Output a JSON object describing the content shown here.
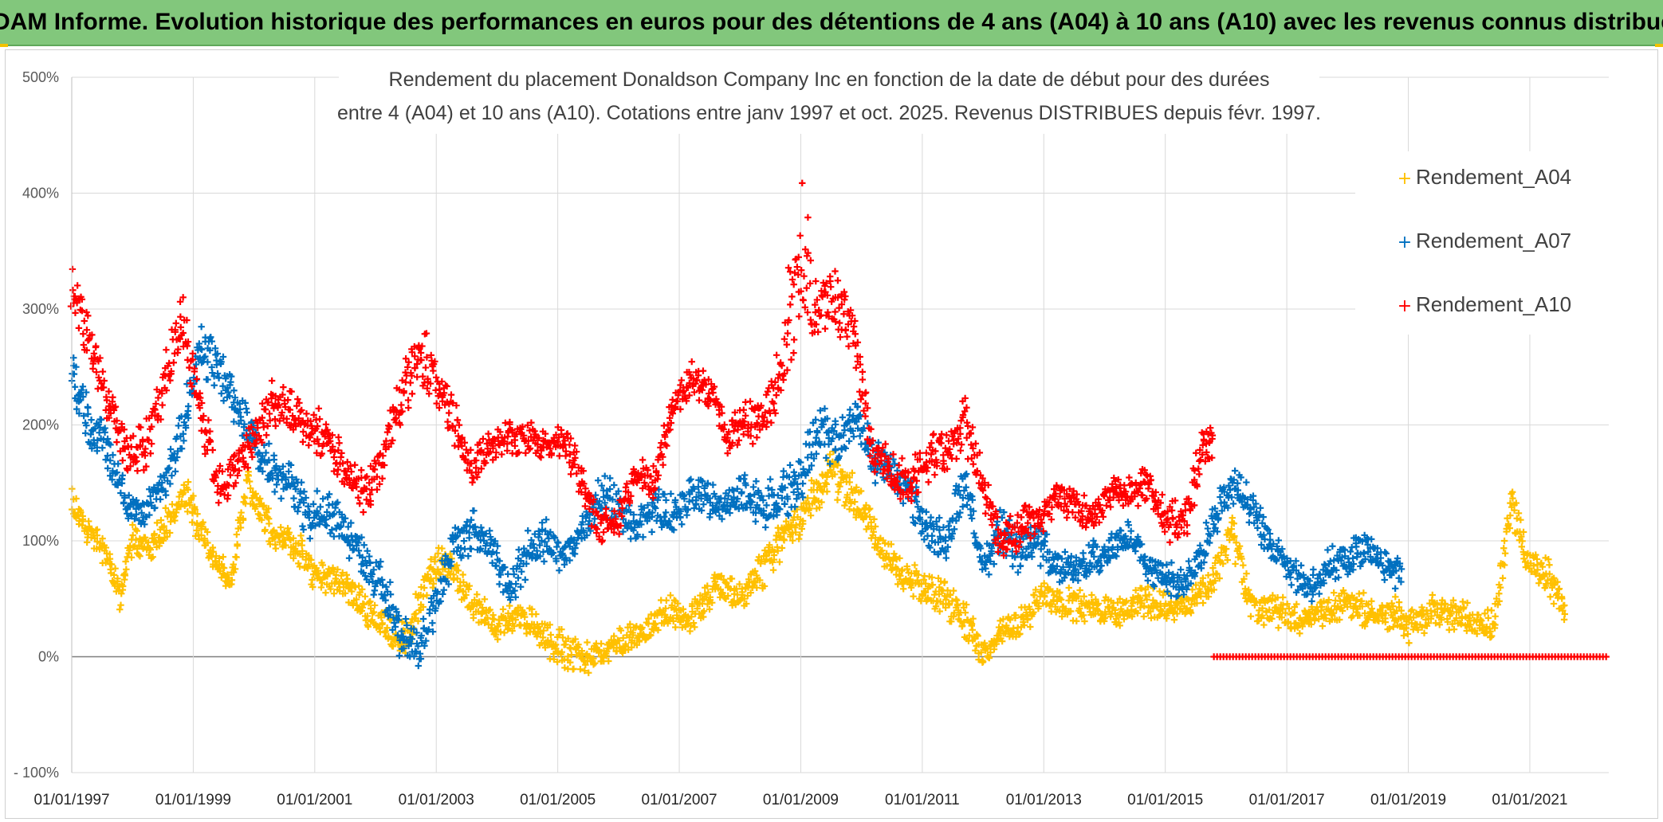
{
  "banner": {
    "title": "ADAM Informe. Evolution historique des performances en euros pour des détentions de 4 ans (A04) à 10 ans (A10) avec les revenus connus distribués"
  },
  "colors": {
    "banner_bg": "#82c77c",
    "A04": "#ffc000",
    "A07": "#0070c0",
    "A10": "#ff0000",
    "grid": "#d9d9d9"
  },
  "chart_data": {
    "type": "scatter",
    "title_line1": "Rendement du placement Donaldson Company Inc en fonction de la date de début pour des durées",
    "title_line2": "entre 4 (A04) et 10 ans (A10). Cotations entre janv 1997 et oct. 2025. Revenus DISTRIBUES depuis févr. 1997.",
    "xlabel": "",
    "ylabel": "",
    "x_range": [
      1997.0,
      2022.3
    ],
    "ylim": [
      -100,
      500
    ],
    "y_ticks": [
      {
        "value": 500,
        "label": "500%"
      },
      {
        "value": 400,
        "label": "400%"
      },
      {
        "value": 300,
        "label": "300%"
      },
      {
        "value": 200,
        "label": "200%"
      },
      {
        "value": 100,
        "label": "100%"
      },
      {
        "value": 0,
        "label": "0%"
      },
      {
        "value": -100,
        "label": "- 100%"
      }
    ],
    "x_ticks": [
      {
        "value": 1997,
        "label": "01/01/1997"
      },
      {
        "value": 1999,
        "label": "01/01/1999"
      },
      {
        "value": 2001,
        "label": "01/01/2001"
      },
      {
        "value": 2003,
        "label": "01/01/2003"
      },
      {
        "value": 2005,
        "label": "01/01/2005"
      },
      {
        "value": 2007,
        "label": "01/01/2007"
      },
      {
        "value": 2009,
        "label": "01/01/2009"
      },
      {
        "value": 2011,
        "label": "01/01/2011"
      },
      {
        "value": 2013,
        "label": "01/01/2013"
      },
      {
        "value": 2015,
        "label": "01/01/2015"
      },
      {
        "value": 2017,
        "label": "01/01/2017"
      },
      {
        "value": 2019,
        "label": "01/01/2019"
      },
      {
        "value": 2021,
        "label": "01/01/2021"
      }
    ],
    "grid": true,
    "legend_position": "top-right",
    "marker": "+",
    "series": [
      {
        "name": "Rendement_A04",
        "color": "#ffc000",
        "x": [
          1997.0,
          1997.3,
          1997.6,
          1997.8,
          1998.0,
          1998.3,
          1998.6,
          1998.9,
          1999.1,
          1999.4,
          1999.6,
          1999.9,
          2000.3,
          2000.7,
          2001.0,
          2001.4,
          2001.8,
          2002.1,
          2002.5,
          2002.8,
          2003.0,
          2003.3,
          2003.6,
          2004.0,
          2004.4,
          2004.8,
          2005.2,
          2005.6,
          2006.0,
          2006.4,
          2006.8,
          2007.2,
          2007.6,
          2008.0,
          2008.4,
          2008.8,
          2009.1,
          2009.5,
          2009.9,
          2010.3,
          2010.7,
          2011.0,
          2011.4,
          2011.8,
          2012.0,
          2012.3,
          2012.7,
          2013.0,
          2013.4,
          2013.8,
          2014.2,
          2014.6,
          2015.0,
          2015.4,
          2015.8,
          2016.1,
          2016.4,
          2016.8,
          2017.2,
          2017.6,
          2018.0,
          2018.4,
          2018.8,
          2019.0,
          2019.4,
          2019.8,
          2020.1,
          2020.4,
          2020.7,
          2021.0,
          2021.3,
          2021.6
        ],
        "y": [
          130,
          105,
          85,
          50,
          100,
          90,
          120,
          140,
          110,
          80,
          60,
          150,
          110,
          95,
          70,
          65,
          45,
          30,
          15,
          60,
          80,
          75,
          45,
          25,
          35,
          15,
          5,
          0,
          10,
          20,
          40,
          30,
          60,
          50,
          80,
          110,
          125,
          160,
          140,
          95,
          70,
          60,
          50,
          25,
          0,
          20,
          30,
          55,
          45,
          40,
          35,
          50,
          40,
          45,
          70,
          110,
          45,
          40,
          30,
          35,
          50,
          35,
          40,
          25,
          40,
          35,
          30,
          25,
          130,
          75,
          70,
          40
        ],
        "y_low": [
          120,
          95,
          75,
          40,
          90,
          80,
          105,
          125,
          95,
          70,
          50,
          135,
          95,
          80,
          55,
          50,
          30,
          15,
          0,
          45,
          65,
          60,
          30,
          15,
          25,
          0,
          -15,
          -15,
          0,
          10,
          25,
          20,
          45,
          40,
          60,
          90,
          110,
          140,
          120,
          80,
          55,
          45,
          30,
          10,
          -10,
          10,
          15,
          40,
          30,
          30,
          25,
          35,
          30,
          35,
          55,
          90,
          30,
          25,
          20,
          25,
          35,
          20,
          25,
          10,
          25,
          20,
          20,
          15,
          110,
          60,
          55,
          20
        ],
        "y_high": [
          145,
          120,
          100,
          65,
          115,
          105,
          135,
          155,
          125,
          95,
          75,
          165,
          125,
          110,
          85,
          80,
          60,
          45,
          30,
          75,
          95,
          90,
          60,
          40,
          50,
          30,
          20,
          15,
          25,
          35,
          55,
          45,
          75,
          65,
          95,
          125,
          145,
          180,
          160,
          110,
          85,
          75,
          65,
          40,
          15,
          35,
          45,
          70,
          60,
          55,
          50,
          65,
          55,
          60,
          85,
          125,
          60,
          55,
          45,
          50,
          65,
          50,
          55,
          40,
          55,
          50,
          45,
          40,
          150,
          90,
          85,
          50
        ]
      },
      {
        "name": "Rendement_A07",
        "color": "#0070c0",
        "x": [
          1997.0,
          1997.3,
          1997.6,
          1997.9,
          1998.2,
          1998.5,
          1998.8,
          1999.1,
          1999.4,
          1999.7,
          2000.0,
          2000.3,
          2000.6,
          2000.9,
          2001.2,
          2001.5,
          2001.8,
          2002.1,
          2002.4,
          2002.7,
          2003.0,
          2003.3,
          2003.6,
          2003.9,
          2004.2,
          2004.5,
          2004.8,
          2005.1,
          2005.4,
          2005.7,
          2006.0,
          2006.3,
          2006.6,
          2006.9,
          2007.2,
          2007.5,
          2007.8,
          2008.1,
          2008.4,
          2008.7,
          2009.0,
          2009.3,
          2009.6,
          2009.9,
          2010.2,
          2010.5,
          2010.8,
          2011.1,
          2011.4,
          2011.7,
          2012.0,
          2012.3,
          2012.6,
          2012.9,
          2013.2,
          2013.5,
          2013.8,
          2014.1,
          2014.4,
          2014.7,
          2015.0,
          2015.3,
          2015.6,
          2015.9,
          2016.2,
          2016.5,
          2016.8,
          2017.1,
          2017.4,
          2017.7,
          2018.0,
          2018.3,
          2018.6,
          2018.9
        ],
        "y": [
          240,
          200,
          180,
          130,
          125,
          145,
          190,
          270,
          250,
          220,
          190,
          160,
          150,
          120,
          130,
          110,
          80,
          65,
          20,
          5,
          50,
          95,
          110,
          90,
          55,
          90,
          100,
          85,
          110,
          140,
          130,
          110,
          130,
          120,
          140,
          135,
          130,
          140,
          130,
          140,
          150,
          200,
          180,
          210,
          170,
          160,
          140,
          110,
          100,
          150,
          75,
          110,
          90,
          100,
          80,
          75,
          85,
          90,
          105,
          80,
          70,
          60,
          90,
          130,
          150,
          120,
          90,
          70,
          60,
          80,
          85,
          95,
          80,
          70
        ],
        "y_low": [
          215,
          180,
          160,
          115,
          110,
          130,
          170,
          245,
          225,
          200,
          170,
          140,
          130,
          100,
          110,
          90,
          60,
          45,
          0,
          -10,
          30,
          75,
          90,
          70,
          40,
          70,
          80,
          70,
          95,
          120,
          110,
          95,
          110,
          100,
          125,
          120,
          115,
          120,
          110,
          120,
          125,
          175,
          160,
          190,
          150,
          140,
          120,
          95,
          80,
          130,
          60,
          90,
          70,
          80,
          65,
          60,
          70,
          75,
          90,
          65,
          55,
          45,
          75,
          110,
          130,
          105,
          75,
          55,
          45,
          65,
          70,
          80,
          65,
          50
        ],
        "y_high": [
          265,
          220,
          200,
          145,
          140,
          160,
          210,
          295,
          275,
          240,
          210,
          180,
          170,
          140,
          150,
          130,
          100,
          85,
          40,
          20,
          70,
          115,
          130,
          110,
          70,
          110,
          120,
          100,
          125,
          160,
          150,
          125,
          150,
          140,
          155,
          150,
          145,
          160,
          150,
          160,
          175,
          225,
          200,
          225,
          190,
          180,
          160,
          125,
          120,
          170,
          90,
          130,
          110,
          120,
          95,
          90,
          100,
          105,
          120,
          95,
          85,
          75,
          105,
          150,
          165,
          135,
          105,
          85,
          75,
          95,
          100,
          110,
          95,
          85
        ]
      },
      {
        "name": "Rendement_A10",
        "color": "#ff0000",
        "x": [
          1997.0,
          1997.3,
          1997.6,
          1997.9,
          1998.2,
          1998.5,
          1998.8,
          1999.1,
          1999.4,
          1999.7,
          2000.0,
          2000.3,
          2000.6,
          2000.9,
          2001.2,
          2001.5,
          2001.8,
          2002.1,
          2002.4,
          2002.7,
          2003.0,
          2003.3,
          2003.6,
          2003.9,
          2004.2,
          2004.5,
          2004.8,
          2005.1,
          2005.4,
          2005.7,
          2006.0,
          2006.3,
          2006.6,
          2006.9,
          2007.2,
          2007.5,
          2007.8,
          2008.1,
          2008.4,
          2008.7,
          2009.0,
          2009.3,
          2009.6,
          2009.9,
          2010.2,
          2010.5,
          2010.8,
          2011.1,
          2011.4,
          2011.7,
          2012.0,
          2012.3,
          2012.6,
          2012.9,
          2013.2,
          2013.5,
          2013.8,
          2014.1,
          2014.4,
          2014.7,
          2015.0,
          2015.3,
          2015.6,
          2015.8
        ],
        "y": [
          320,
          270,
          220,
          180,
          180,
          230,
          290,
          220,
          150,
          160,
          190,
          220,
          210,
          200,
          190,
          160,
          140,
          170,
          220,
          260,
          240,
          200,
          160,
          180,
          190,
          190,
          180,
          190,
          150,
          110,
          120,
          160,
          150,
          220,
          240,
          230,
          190,
          200,
          210,
          250,
          330,
          300,
          310,
          270,
          170,
          160,
          150,
          170,
          180,
          200,
          150,
          100,
          110,
          120,
          140,
          130,
          120,
          140,
          140,
          150,
          120,
          110,
          180,
          190
        ],
        "y_low": [
          290,
          250,
          200,
          160,
          160,
          210,
          260,
          200,
          130,
          140,
          170,
          200,
          190,
          180,
          170,
          140,
          120,
          150,
          200,
          230,
          215,
          180,
          140,
          165,
          175,
          175,
          165,
          175,
          130,
          95,
          105,
          145,
          135,
          205,
          225,
          215,
          170,
          180,
          190,
          220,
          290,
          270,
          280,
          250,
          150,
          140,
          130,
          150,
          160,
          175,
          130,
          80,
          90,
          100,
          125,
          115,
          105,
          125,
          125,
          135,
          100,
          90,
          160,
          170
        ],
        "y_high": [
          350,
          290,
          240,
          200,
          200,
          250,
          320,
          240,
          170,
          180,
          210,
          240,
          230,
          220,
          210,
          180,
          160,
          190,
          240,
          290,
          265,
          220,
          180,
          195,
          205,
          205,
          195,
          205,
          170,
          125,
          135,
          175,
          165,
          235,
          255,
          245,
          210,
          220,
          230,
          280,
          440,
          330,
          340,
          290,
          190,
          180,
          170,
          190,
          200,
          225,
          170,
          120,
          130,
          140,
          155,
          145,
          135,
          155,
          155,
          165,
          140,
          130,
          200,
          210
        ]
      },
      {
        "name": "Rendement_A10 (zero line)",
        "color": "#ff0000",
        "x_start": 2015.8,
        "x_end": 2022.3,
        "y": 0
      }
    ]
  },
  "legend": [
    {
      "label": "Rendement_A04",
      "color": "#ffc000"
    },
    {
      "label": "Rendement_A07",
      "color": "#0070c0"
    },
    {
      "label": "Rendement_A10",
      "color": "#ff0000"
    }
  ]
}
